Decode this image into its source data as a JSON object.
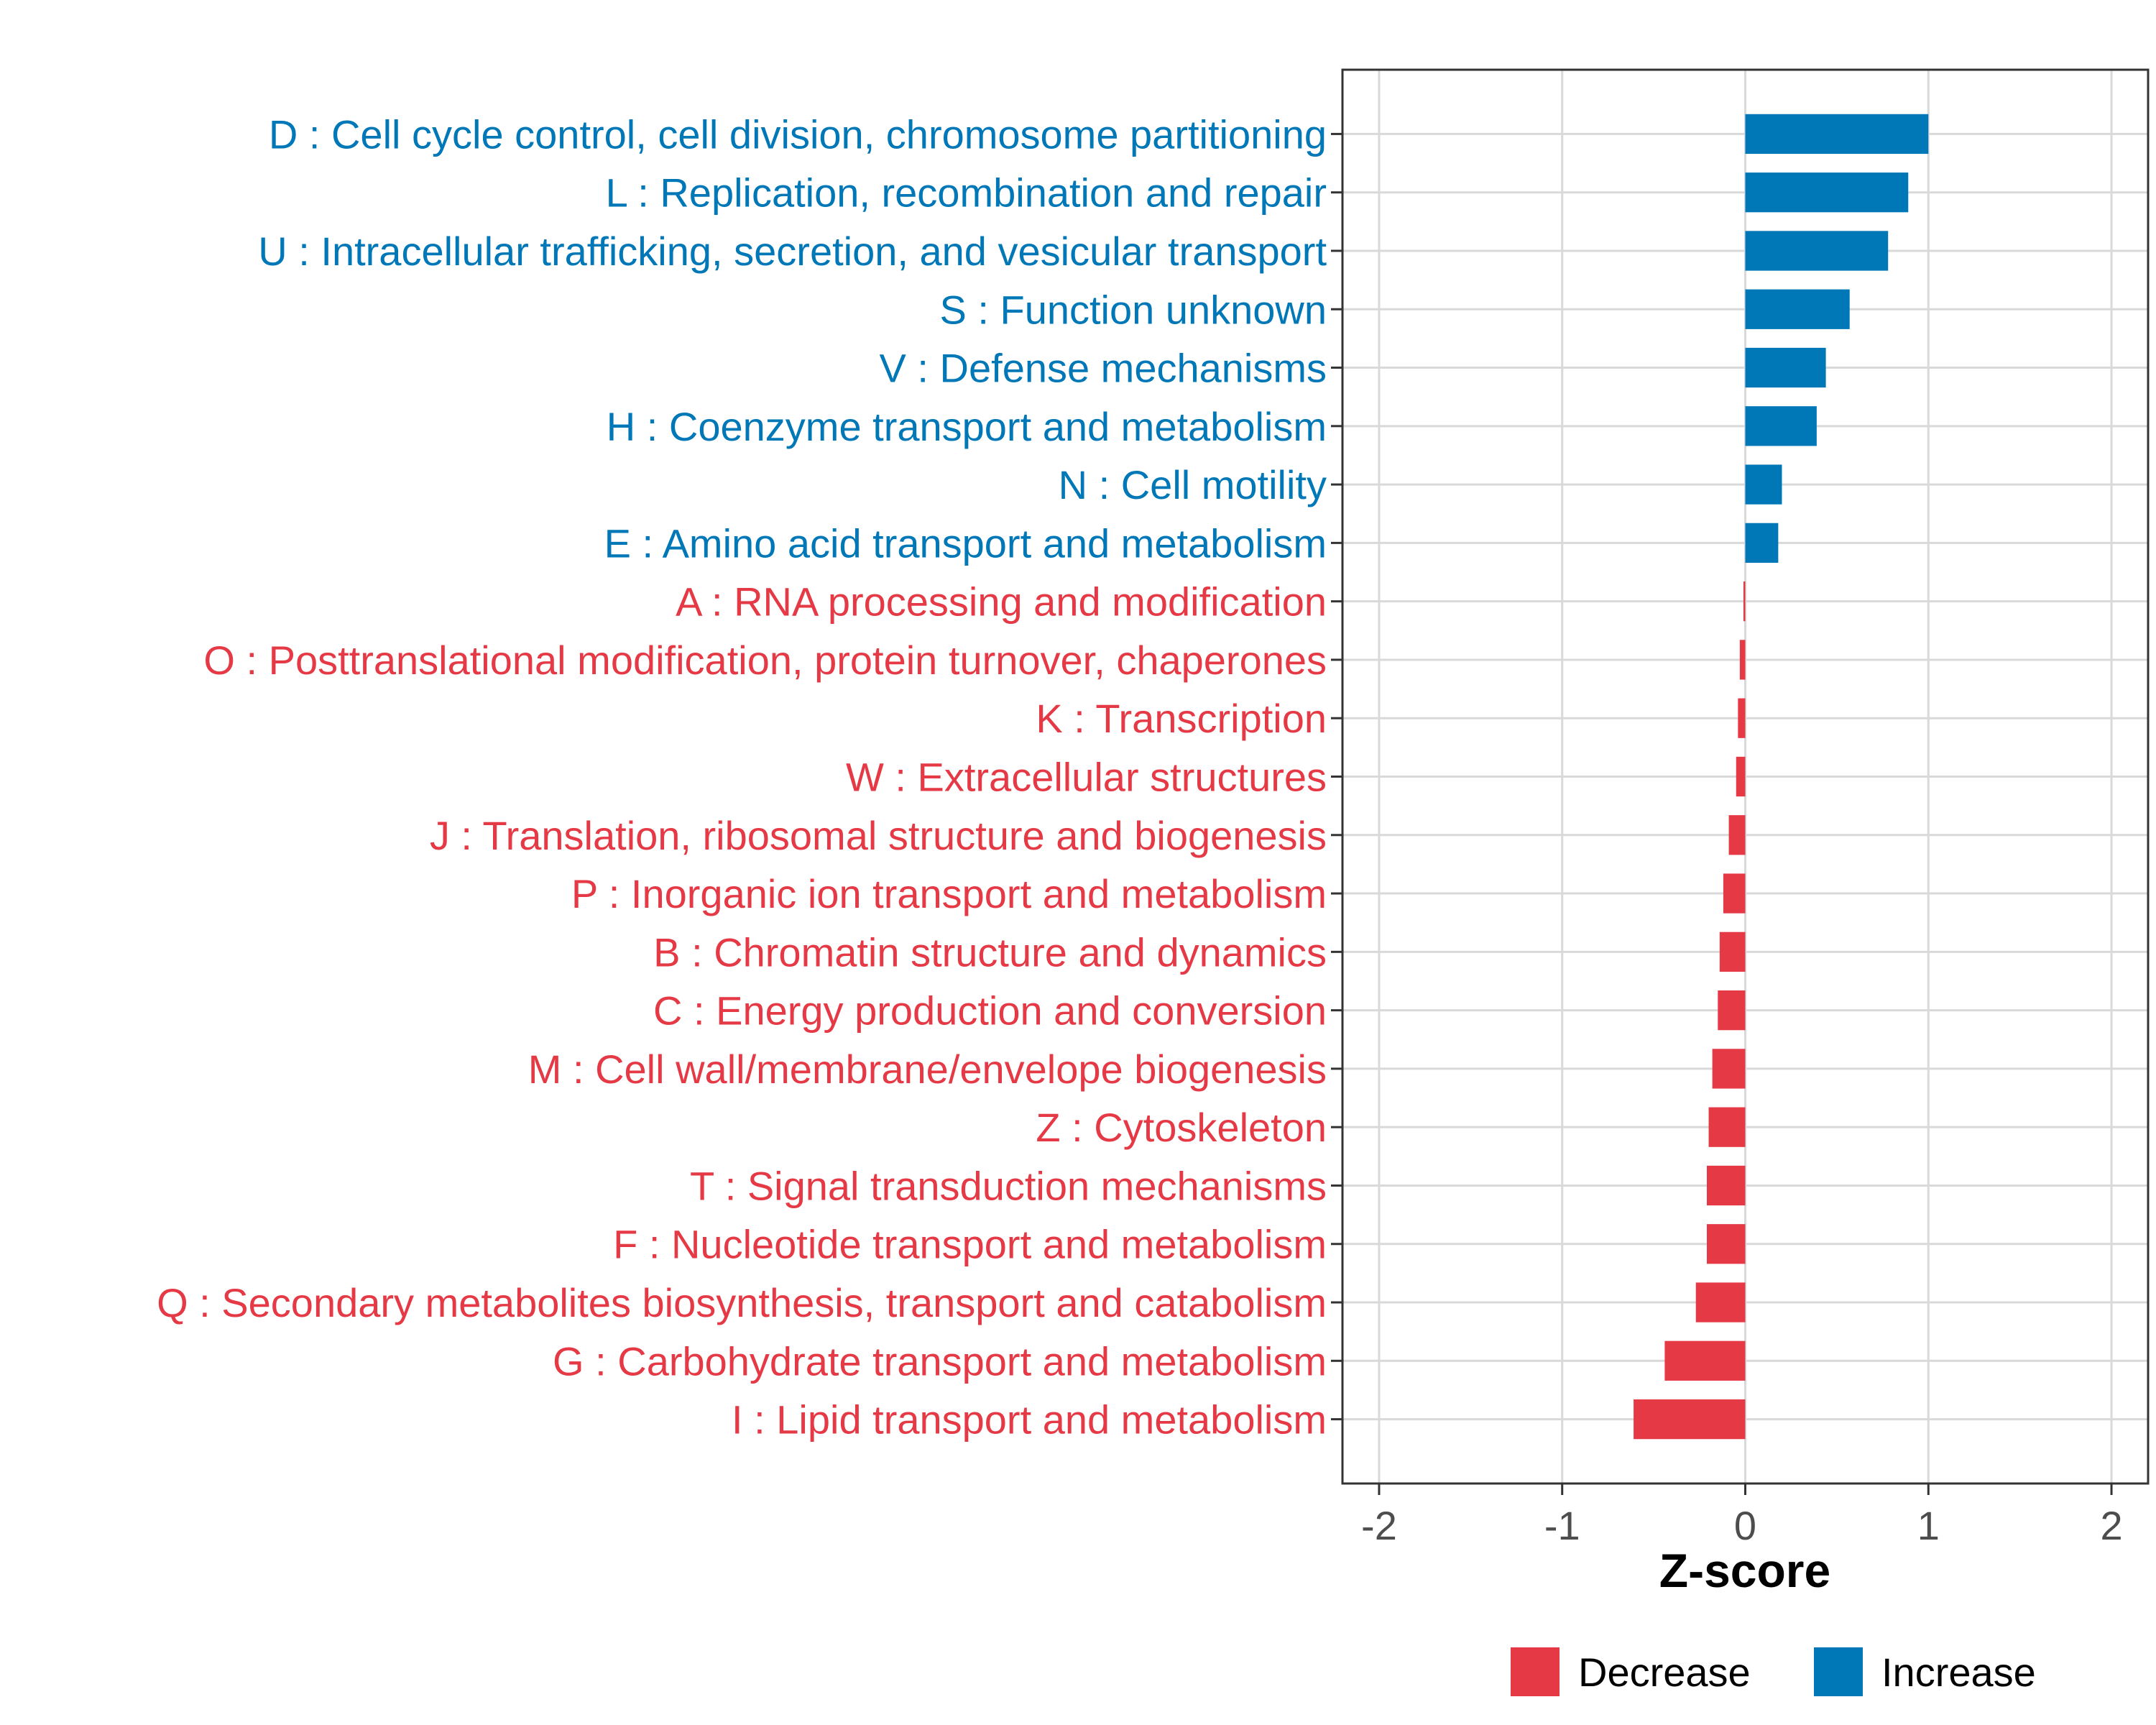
{
  "chart_data": {
    "type": "bar",
    "orientation": "horizontal",
    "title": "",
    "xlabel": "Z-score",
    "ylabel": "",
    "xlim": [
      -2.2,
      2.2
    ],
    "xticks": [
      -2,
      -1,
      0,
      1,
      2
    ],
    "xtick_labels": [
      "-2",
      "-1",
      "0",
      "1",
      "2"
    ],
    "grid": true,
    "legend_position": "bottom",
    "legend": [
      {
        "key": "Decrease",
        "label": "Decrease",
        "color": "#E63946"
      },
      {
        "key": "Increase",
        "label": "Increase",
        "color": "#0077B6"
      }
    ],
    "categories": [
      "D : Cell cycle control, cell division, chromosome partitioning",
      "L : Replication, recombination and repair",
      "U : Intracellular trafficking, secretion, and vesicular transport",
      "S : Function unknown",
      "V : Defense mechanisms",
      "H : Coenzyme transport and metabolism",
      "N : Cell motility",
      "E : Amino acid transport and metabolism",
      "A : RNA processing and modification",
      "O : Posttranslational modification, protein turnover, chaperones",
      "K : Transcription",
      "W : Extracellular structures",
      "J : Translation, ribosomal structure and biogenesis",
      "P : Inorganic ion transport and metabolism",
      "B : Chromatin structure and dynamics",
      "C : Energy production and conversion",
      "M : Cell wall/membrane/envelope biogenesis",
      "Z : Cytoskeleton",
      "T : Signal transduction mechanisms",
      "F : Nucleotide transport and metabolism",
      "Q : Secondary metabolites biosynthesis, transport and catabolism",
      "G : Carbohydrate transport and metabolism",
      "I : Lipid transport and metabolism"
    ],
    "values": [
      1.0,
      0.89,
      0.78,
      0.57,
      0.44,
      0.39,
      0.2,
      0.18,
      -0.01,
      -0.03,
      -0.04,
      -0.05,
      -0.09,
      -0.12,
      -0.14,
      -0.15,
      -0.18,
      -0.2,
      -0.21,
      -0.21,
      -0.27,
      -0.44,
      -0.61
    ],
    "groups": [
      "Increase",
      "Increase",
      "Increase",
      "Increase",
      "Increase",
      "Increase",
      "Increase",
      "Increase",
      "Decrease",
      "Decrease",
      "Decrease",
      "Decrease",
      "Decrease",
      "Decrease",
      "Decrease",
      "Decrease",
      "Decrease",
      "Decrease",
      "Decrease",
      "Decrease",
      "Decrease",
      "Decrease",
      "Decrease"
    ]
  }
}
